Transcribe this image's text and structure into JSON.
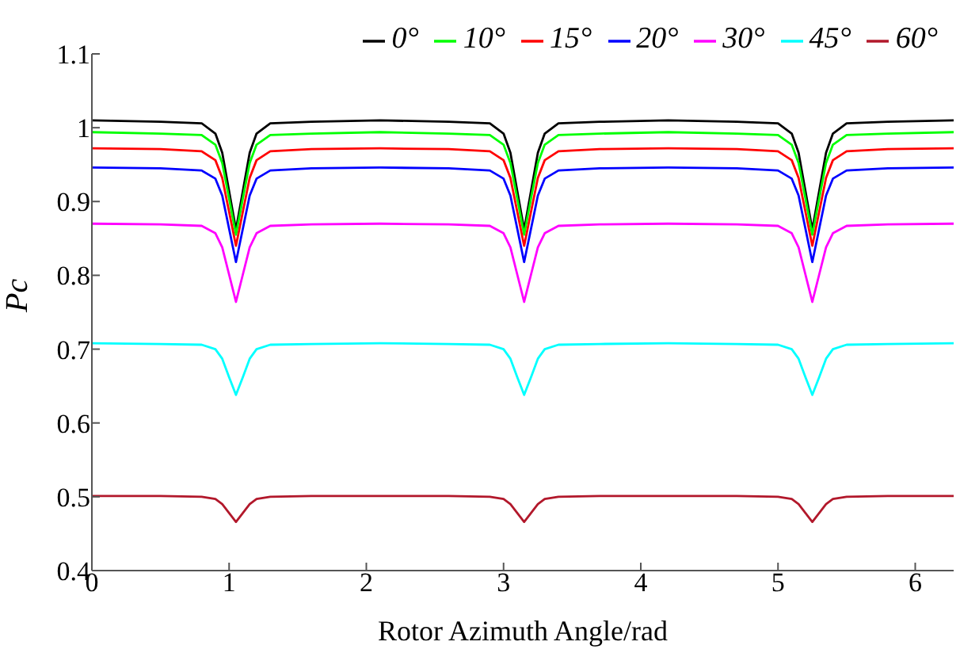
{
  "chart_data": {
    "type": "line",
    "xlabel": "Rotor Azimuth Angle/rad",
    "ylabel": "Pc",
    "x": [
      0,
      0.5,
      0.8,
      0.9,
      0.95,
      1.0,
      1.05,
      1.1,
      1.15,
      1.2,
      1.3,
      1.6,
      2.1,
      2.6,
      2.9,
      3.0,
      3.05,
      3.1,
      3.15,
      3.2,
      3.25,
      3.3,
      3.4,
      3.7,
      4.2,
      4.7,
      5.0,
      5.1,
      5.15,
      5.2,
      5.25,
      5.3,
      5.35,
      5.4,
      5.5,
      5.8,
      6.28
    ],
    "series": [
      {
        "name": "0°",
        "color": "#000000",
        "values": [
          1.01,
          1.008,
          1.006,
          0.992,
          0.966,
          0.914,
          0.862,
          0.914,
          0.966,
          0.992,
          1.006,
          1.008,
          1.01,
          1.008,
          1.006,
          0.992,
          0.966,
          0.914,
          0.862,
          0.914,
          0.966,
          0.992,
          1.006,
          1.008,
          1.01,
          1.008,
          1.006,
          0.992,
          0.966,
          0.914,
          0.862,
          0.914,
          0.966,
          0.992,
          1.006,
          1.008,
          1.01
        ]
      },
      {
        "name": "10°",
        "color": "#00ff00",
        "values": [
          0.994,
          0.992,
          0.99,
          0.977,
          0.952,
          0.904,
          0.855,
          0.904,
          0.952,
          0.977,
          0.99,
          0.992,
          0.994,
          0.992,
          0.99,
          0.977,
          0.952,
          0.904,
          0.855,
          0.904,
          0.952,
          0.977,
          0.99,
          0.992,
          0.994,
          0.992,
          0.99,
          0.977,
          0.952,
          0.904,
          0.855,
          0.904,
          0.952,
          0.977,
          0.99,
          0.992,
          0.994
        ]
      },
      {
        "name": "15°",
        "color": "#ff0000",
        "values": [
          0.972,
          0.971,
          0.968,
          0.956,
          0.932,
          0.886,
          0.84,
          0.886,
          0.932,
          0.956,
          0.968,
          0.971,
          0.972,
          0.971,
          0.968,
          0.956,
          0.932,
          0.886,
          0.84,
          0.886,
          0.932,
          0.956,
          0.968,
          0.971,
          0.972,
          0.971,
          0.968,
          0.956,
          0.932,
          0.886,
          0.84,
          0.886,
          0.932,
          0.956,
          0.968,
          0.971,
          0.972
        ]
      },
      {
        "name": "20°",
        "color": "#0000ff",
        "values": [
          0.946,
          0.945,
          0.942,
          0.931,
          0.908,
          0.863,
          0.818,
          0.863,
          0.908,
          0.931,
          0.942,
          0.945,
          0.946,
          0.945,
          0.942,
          0.931,
          0.908,
          0.863,
          0.818,
          0.863,
          0.908,
          0.931,
          0.942,
          0.945,
          0.946,
          0.945,
          0.942,
          0.931,
          0.908,
          0.863,
          0.818,
          0.863,
          0.908,
          0.931,
          0.942,
          0.945,
          0.946
        ]
      },
      {
        "name": "30°",
        "color": "#ff00ff",
        "values": [
          0.87,
          0.869,
          0.867,
          0.857,
          0.838,
          0.801,
          0.764,
          0.801,
          0.838,
          0.857,
          0.867,
          0.869,
          0.87,
          0.869,
          0.867,
          0.857,
          0.838,
          0.801,
          0.764,
          0.801,
          0.838,
          0.857,
          0.867,
          0.869,
          0.87,
          0.869,
          0.867,
          0.857,
          0.838,
          0.801,
          0.764,
          0.801,
          0.838,
          0.857,
          0.867,
          0.869,
          0.87
        ]
      },
      {
        "name": "45°",
        "color": "#00ffff",
        "values": [
          0.708,
          0.707,
          0.706,
          0.7,
          0.687,
          0.662,
          0.638,
          0.662,
          0.687,
          0.7,
          0.706,
          0.707,
          0.708,
          0.707,
          0.706,
          0.7,
          0.687,
          0.662,
          0.638,
          0.662,
          0.687,
          0.7,
          0.706,
          0.707,
          0.708,
          0.707,
          0.706,
          0.7,
          0.687,
          0.662,
          0.638,
          0.662,
          0.687,
          0.7,
          0.706,
          0.707,
          0.708
        ]
      },
      {
        "name": "60°",
        "color": "#b2182b",
        "values": [
          0.501,
          0.501,
          0.5,
          0.497,
          0.49,
          0.478,
          0.466,
          0.478,
          0.49,
          0.497,
          0.5,
          0.501,
          0.501,
          0.501,
          0.5,
          0.497,
          0.49,
          0.478,
          0.466,
          0.478,
          0.49,
          0.497,
          0.5,
          0.501,
          0.501,
          0.501,
          0.5,
          0.497,
          0.49,
          0.478,
          0.466,
          0.478,
          0.49,
          0.497,
          0.5,
          0.501,
          0.501
        ]
      }
    ],
    "xlim": [
      0,
      6.28
    ],
    "xticks": [
      0,
      1,
      2,
      3,
      4,
      5,
      6
    ],
    "ylim": [
      0.4,
      1.1
    ],
    "yticks": [
      0.4,
      0.5,
      0.6,
      0.7,
      0.8,
      0.9,
      1,
      1.1
    ],
    "grid": false,
    "legend": "top right",
    "marker": "none",
    "line_style": "solid"
  }
}
